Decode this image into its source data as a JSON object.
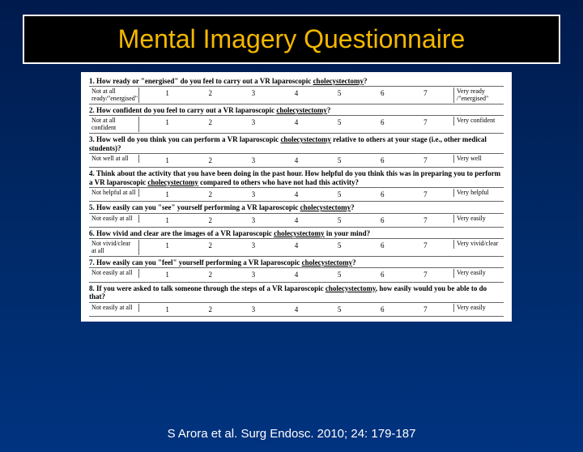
{
  "title": "Mental Imagery Questionnaire",
  "citation": "S Arora et al. Surg Endosc. 2010; 24: 179-187",
  "scale_numbers": [
    "1",
    "2",
    "3",
    "4",
    "5",
    "6",
    "7"
  ],
  "questions": [
    {
      "num": "1.",
      "text": "How ready or \"energised\" do you feel to carry out a VR laparoscopic ",
      "underlined": "cholecystectomy",
      "tail": "?",
      "left": "Not at all ready/\"energised\"",
      "right": "Very ready /\"energised\""
    },
    {
      "num": "2.",
      "text": "How confident do you feel to carry out a VR laparoscopic ",
      "underlined": "cholecystectomy",
      "tail": "?",
      "left": "Not at all confident",
      "right": "Very confident"
    },
    {
      "num": "3.",
      "text": "How well do you think you can perform a VR laparoscopic ",
      "underlined": "cholecystectomy",
      "tail": " relative to others at your stage (i.e., other medical students)?",
      "left": "Not well at all",
      "right": "Very well"
    },
    {
      "num": "4.",
      "text": "Think about the activity that you have been doing in the past hour. How helpful do you think this was in preparing you to perform a VR laparoscopic ",
      "underlined": "cholecystectomy",
      "tail": " compared to others who have not had this activity?",
      "left": "Not helpful at all",
      "right": "Very helpful"
    },
    {
      "num": "5.",
      "text": "How easily can you \"see\" yourself performing a VR laparoscopic ",
      "underlined": "cholecystectomy",
      "tail": "?",
      "left": "Not easily at all",
      "right": "Very easily"
    },
    {
      "num": "6.",
      "text": "How vivid and clear are the images of a VR laparoscopic ",
      "underlined": "cholecystectomy",
      "tail": " in your mind?",
      "left": "Not vivid/clear at all",
      "right": "Very vivid/clear"
    },
    {
      "num": "7.",
      "text": "How easily can you \"feel\" yourself performing a VR laparoscopic ",
      "underlined": "cholecystectomy",
      "tail": "?",
      "left": "Not easily at all",
      "right": "Very easily"
    },
    {
      "num": "8.",
      "text": "If you were asked to talk someone through the steps of a VR laparoscopic ",
      "underlined": "cholecystectomy",
      "tail": ", how easily would you be able to do that?",
      "left": "Not easily at all",
      "right": "Very easily"
    }
  ]
}
